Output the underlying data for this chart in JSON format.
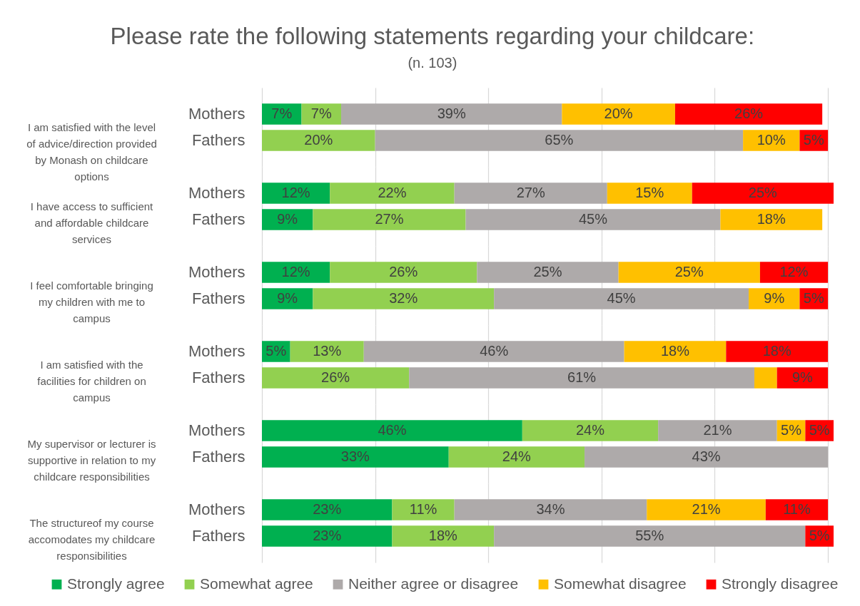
{
  "chart_data": [
    {
      "type": "bar",
      "orientation": "horizontal",
      "stacked": true,
      "title": "Please rate the following statements regarding your childcare:",
      "subtitle": "(n. 103)",
      "ylabel": "I am satisfied with the level of advice/direction provided by Monash on childcare options",
      "categories": [
        "Mothers",
        "Fathers"
      ],
      "series": [
        {
          "name": "Strongly agree",
          "color": "#00b050",
          "values": [
            7,
            null
          ],
          "value_labels": [
            "7%",
            null
          ]
        },
        {
          "name": "Somewhat agree",
          "color": "#92d050",
          "values": [
            7,
            20
          ],
          "value_labels": [
            "7%",
            "20%"
          ]
        },
        {
          "name": "Neither agree or disagree",
          "color": "#aeaaaa",
          "values": [
            39,
            65
          ],
          "value_labels": [
            "39%",
            "65%"
          ]
        },
        {
          "name": "Somewhat disagree",
          "color": "#ffc000",
          "values": [
            20,
            10
          ],
          "value_labels": [
            "20%",
            "10%"
          ]
        },
        {
          "name": "Strongly disagree",
          "color": "#ff0000",
          "values": [
            26,
            5
          ],
          "value_labels": [
            "26%",
            "5%"
          ]
        }
      ],
      "xticks": [
        {
          "value": 0,
          "label": null
        },
        {
          "value": 20,
          "label": null
        },
        {
          "value": 40,
          "label": null
        },
        {
          "value": 60,
          "label": null
        },
        {
          "value": 80,
          "label": null
        },
        {
          "value": 100,
          "label": null
        }
      ],
      "grid": "x",
      "tick_labels": "y",
      "legend": "bottom"
    },
    {
      "type": "bar",
      "orientation": "horizontal",
      "stacked": true,
      "ylabel": "I have access to sufficient and affordable childcare services",
      "categories": [
        "Mothers",
        "Fathers"
      ],
      "series": [
        {
          "name": "Strongly agree",
          "color": "#00b050",
          "values": [
            12,
            9
          ],
          "value_labels": [
            "12%",
            "9%"
          ]
        },
        {
          "name": "Somewhat agree",
          "color": "#92d050",
          "values": [
            22,
            27
          ],
          "value_labels": [
            "22%",
            "27%"
          ]
        },
        {
          "name": "Neither agree or disagree",
          "color": "#aeaaaa",
          "values": [
            27,
            45
          ],
          "value_labels": [
            "27%",
            "45%"
          ]
        },
        {
          "name": "Somewhat disagree",
          "color": "#ffc000",
          "values": [
            15,
            18
          ],
          "value_labels": [
            "15%",
            "18%"
          ]
        },
        {
          "name": "Strongly disagree",
          "color": "#ff0000",
          "values": [
            25,
            null
          ],
          "value_labels": [
            "25%",
            null
          ]
        }
      ],
      "xticks": [
        {
          "value": 0,
          "label": null
        },
        {
          "value": 20,
          "label": null
        },
        {
          "value": 40,
          "label": null
        },
        {
          "value": 60,
          "label": null
        },
        {
          "value": 80,
          "label": null
        },
        {
          "value": 100,
          "label": null
        }
      ],
      "grid": "x",
      "tick_labels": "y",
      "legend": "bottom"
    },
    {
      "type": "bar",
      "orientation": "horizontal",
      "stacked": true,
      "ylabel": "I feel comfortable bringing my children with me to campus",
      "categories": [
        "Mothers",
        "Fathers"
      ],
      "series": [
        {
          "name": "Strongly agree",
          "color": "#00b050",
          "values": [
            12,
            9
          ],
          "value_labels": [
            "12%",
            "9%"
          ]
        },
        {
          "name": "Somewhat agree",
          "color": "#92d050",
          "values": [
            26,
            32
          ],
          "value_labels": [
            "26%",
            "32%"
          ]
        },
        {
          "name": "Neither agree or disagree",
          "color": "#aeaaaa",
          "values": [
            25,
            45
          ],
          "value_labels": [
            "25%",
            "45%"
          ]
        },
        {
          "name": "Somewhat disagree",
          "color": "#ffc000",
          "values": [
            25,
            9
          ],
          "value_labels": [
            "25%",
            "9%"
          ]
        },
        {
          "name": "Strongly disagree",
          "color": "#ff0000",
          "values": [
            12,
            5
          ],
          "value_labels": [
            "12%",
            "5%"
          ]
        }
      ],
      "xticks": [
        {
          "value": 0,
          "label": null
        },
        {
          "value": 20,
          "label": null
        },
        {
          "value": 40,
          "label": null
        },
        {
          "value": 60,
          "label": null
        },
        {
          "value": 80,
          "label": null
        },
        {
          "value": 100,
          "label": null
        }
      ],
      "grid": "x",
      "tick_labels": "y",
      "legend": "bottom"
    },
    {
      "type": "bar",
      "orientation": "horizontal",
      "stacked": true,
      "ylabel": "I am satisfied with the facilities for children on campus",
      "categories": [
        "Mothers",
        "Fathers"
      ],
      "series": [
        {
          "name": "Strongly agree",
          "color": "#00b050",
          "values": [
            5,
            null
          ],
          "value_labels": [
            "5%",
            null
          ]
        },
        {
          "name": "Somewhat agree",
          "color": "#92d050",
          "values": [
            13,
            26
          ],
          "value_labels": [
            "13%",
            "26%"
          ]
        },
        {
          "name": "Neither agree or disagree",
          "color": "#aeaaaa",
          "values": [
            46,
            61
          ],
          "value_labels": [
            "46%",
            "61%"
          ]
        },
        {
          "name": "Somewhat disagree",
          "color": "#ffc000",
          "values": [
            18,
            4
          ],
          "value_labels": [
            "18%",
            null
          ]
        },
        {
          "name": "Strongly disagree",
          "color": "#ff0000",
          "values": [
            18,
            9
          ],
          "value_labels": [
            "18%",
            "9%"
          ]
        }
      ],
      "xticks": [
        {
          "value": 0,
          "label": null
        },
        {
          "value": 20,
          "label": null
        },
        {
          "value": 40,
          "label": null
        },
        {
          "value": 60,
          "label": null
        },
        {
          "value": 80,
          "label": null
        },
        {
          "value": 100,
          "label": null
        }
      ],
      "grid": "x",
      "tick_labels": "y",
      "legend": "bottom"
    },
    {
      "type": "bar",
      "orientation": "horizontal",
      "stacked": true,
      "ylabel": "My supervisor or lecturer is supportive in relation to my childcare responsibilities",
      "categories": [
        "Mothers",
        "Fathers"
      ],
      "series": [
        {
          "name": "Strongly agree",
          "color": "#00b050",
          "values": [
            46,
            33
          ],
          "value_labels": [
            "46%",
            "33%"
          ]
        },
        {
          "name": "Somewhat agree",
          "color": "#92d050",
          "values": [
            24,
            24
          ],
          "value_labels": [
            "24%",
            "24%"
          ]
        },
        {
          "name": "Neither agree or disagree",
          "color": "#aeaaaa",
          "values": [
            21,
            43
          ],
          "value_labels": [
            "21%",
            "43%"
          ]
        },
        {
          "name": "Somewhat disagree",
          "color": "#ffc000",
          "values": [
            5,
            null
          ],
          "value_labels": [
            "5%",
            null
          ]
        },
        {
          "name": "Strongly disagree",
          "color": "#ff0000",
          "values": [
            5,
            null
          ],
          "value_labels": [
            "5%",
            null
          ]
        }
      ],
      "xticks": [
        {
          "value": 0,
          "label": null
        },
        {
          "value": 20,
          "label": null
        },
        {
          "value": 40,
          "label": null
        },
        {
          "value": 60,
          "label": null
        },
        {
          "value": 80,
          "label": null
        },
        {
          "value": 100,
          "label": null
        }
      ],
      "grid": "x",
      "tick_labels": "y",
      "legend": "bottom"
    },
    {
      "type": "bar",
      "orientation": "horizontal",
      "stacked": true,
      "ylabel": "The structureof my course accomodates my childcare responsibilities",
      "categories": [
        "Mothers",
        "Fathers"
      ],
      "series": [
        {
          "name": "Strongly agree",
          "color": "#00b050",
          "values": [
            23,
            23
          ],
          "value_labels": [
            "23%",
            "23%"
          ]
        },
        {
          "name": "Somewhat agree",
          "color": "#92d050",
          "values": [
            11,
            18
          ],
          "value_labels": [
            "11%",
            "18%"
          ]
        },
        {
          "name": "Neither agree or disagree",
          "color": "#aeaaaa",
          "values": [
            34,
            55
          ],
          "value_labels": [
            "34%",
            "55%"
          ]
        },
        {
          "name": "Somewhat disagree",
          "color": "#ffc000",
          "values": [
            21,
            null
          ],
          "value_labels": [
            "21%",
            null
          ]
        },
        {
          "name": "Strongly disagree",
          "color": "#ff0000",
          "values": [
            11,
            5
          ],
          "value_labels": [
            "11%",
            "5%"
          ]
        }
      ],
      "xticks": [
        {
          "value": 0,
          "label": null
        },
        {
          "value": 20,
          "label": null
        },
        {
          "value": 40,
          "label": null
        },
        {
          "value": 60,
          "label": null
        },
        {
          "value": 80,
          "label": null
        },
        {
          "value": 100,
          "label": null
        }
      ],
      "grid": "x",
      "tick_labels": "y",
      "legend": "bottom"
    }
  ]
}
